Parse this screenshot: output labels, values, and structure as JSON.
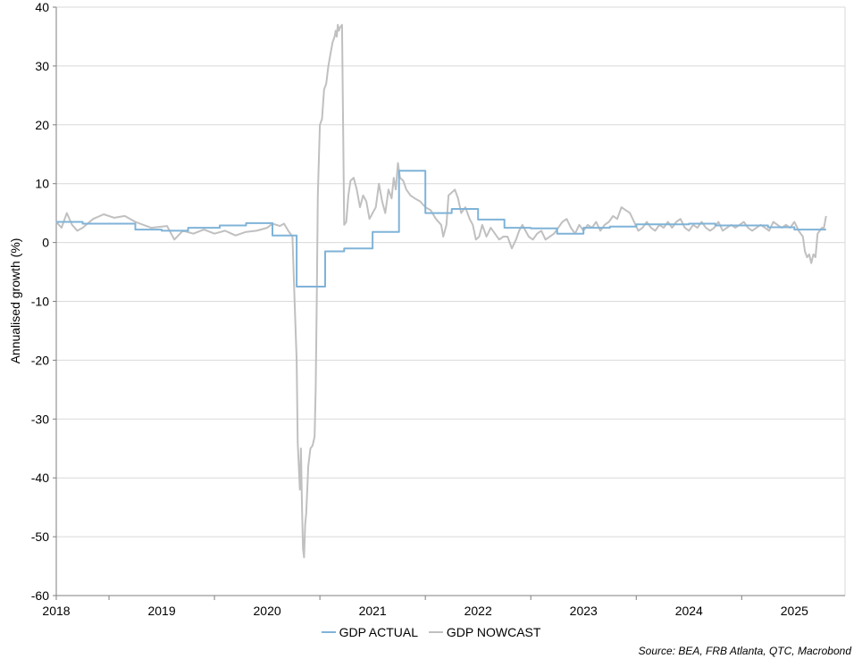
{
  "chart_data": {
    "type": "line",
    "title": "",
    "xlabel": "",
    "ylabel": "Annualised growth (%)",
    "ylim": [
      -60,
      40
    ],
    "yticks": [
      "-60",
      "-50",
      "-40",
      "-30",
      "-20",
      "-10",
      "0",
      "10",
      "20",
      "30",
      "40"
    ],
    "xlim": [
      2017.5,
      2024.98
    ],
    "xtick_labels": [
      "2018",
      "2019",
      "2020",
      "2021",
      "2022",
      "2023",
      "2024",
      "2025"
    ],
    "grid": "horizontal",
    "legend_position": "bottom",
    "colors": {
      "actual": "#7fb3d8",
      "nowcast": "#c0c0c0",
      "grid": "#d9d9d9",
      "axis": "#7f7f7f"
    },
    "series": [
      {
        "name": "GDP ACTUAL",
        "step": true,
        "points": [
          [
            2017.5,
            3.5
          ],
          [
            2017.75,
            3.2
          ],
          [
            2018.25,
            2.2
          ],
          [
            2018.5,
            2.0
          ],
          [
            2018.75,
            2.5
          ],
          [
            2019.05,
            2.9
          ],
          [
            2019.3,
            3.3
          ],
          [
            2019.55,
            1.2
          ],
          [
            2019.78,
            -7.5
          ],
          [
            2020.05,
            -1.5
          ],
          [
            2020.23,
            -1.0
          ],
          [
            2020.5,
            1.8
          ],
          [
            2020.75,
            12.2
          ],
          [
            2021.0,
            5.0
          ],
          [
            2021.25,
            5.7
          ],
          [
            2021.5,
            3.9
          ],
          [
            2021.75,
            2.5
          ],
          [
            2022.0,
            2.4
          ],
          [
            2022.25,
            1.5
          ],
          [
            2022.5,
            2.5
          ],
          [
            2022.75,
            2.7
          ],
          [
            2023.0,
            3.1
          ],
          [
            2023.5,
            3.2
          ],
          [
            2023.75,
            2.9
          ],
          [
            2024.25,
            2.6
          ],
          [
            2024.5,
            2.2
          ],
          [
            2024.8,
            2.2
          ]
        ]
      },
      {
        "name": "GDP NOWCAST",
        "step": false,
        "points": [
          [
            2017.5,
            3.5
          ],
          [
            2017.55,
            2.5
          ],
          [
            2017.6,
            5.0
          ],
          [
            2017.65,
            3.0
          ],
          [
            2017.7,
            2.0
          ],
          [
            2017.75,
            2.5
          ],
          [
            2017.85,
            4.0
          ],
          [
            2017.95,
            4.8
          ],
          [
            2018.05,
            4.2
          ],
          [
            2018.15,
            4.5
          ],
          [
            2018.25,
            3.5
          ],
          [
            2018.4,
            2.5
          ],
          [
            2018.55,
            2.8
          ],
          [
            2018.62,
            0.5
          ],
          [
            2018.7,
            2.0
          ],
          [
            2018.8,
            1.5
          ],
          [
            2018.9,
            2.2
          ],
          [
            2019.0,
            1.5
          ],
          [
            2019.1,
            2.0
          ],
          [
            2019.2,
            1.2
          ],
          [
            2019.3,
            1.8
          ],
          [
            2019.4,
            2.0
          ],
          [
            2019.5,
            2.5
          ],
          [
            2019.55,
            3.2
          ],
          [
            2019.62,
            2.8
          ],
          [
            2019.66,
            3.2
          ],
          [
            2019.7,
            2.0
          ],
          [
            2019.74,
            1.0
          ],
          [
            2019.76,
            -10.0
          ],
          [
            2019.78,
            -20.0
          ],
          [
            2019.79,
            -34.0
          ],
          [
            2019.8,
            -38.0
          ],
          [
            2019.81,
            -42.0
          ],
          [
            2019.82,
            -35.0
          ],
          [
            2019.83,
            -45.0
          ],
          [
            2019.84,
            -52.0
          ],
          [
            2019.85,
            -53.5
          ],
          [
            2019.86,
            -48.0
          ],
          [
            2019.87,
            -46.0
          ],
          [
            2019.88,
            -42.0
          ],
          [
            2019.89,
            -38.0
          ],
          [
            2019.91,
            -35.0
          ],
          [
            2019.93,
            -34.5
          ],
          [
            2019.95,
            -33.0
          ],
          [
            2019.96,
            -25.0
          ],
          [
            2019.97,
            -10.0
          ],
          [
            2019.98,
            8.0
          ],
          [
            2020.0,
            20.0
          ],
          [
            2020.02,
            21.0
          ],
          [
            2020.04,
            26.0
          ],
          [
            2020.06,
            27.0
          ],
          [
            2020.08,
            30.0
          ],
          [
            2020.1,
            32.0
          ],
          [
            2020.12,
            34.0
          ],
          [
            2020.14,
            35.0
          ],
          [
            2020.15,
            36.0
          ],
          [
            2020.16,
            35.0
          ],
          [
            2020.17,
            37.0
          ],
          [
            2020.18,
            36.0
          ],
          [
            2020.19,
            36.5
          ],
          [
            2020.21,
            37.0
          ],
          [
            2020.22,
            20.0
          ],
          [
            2020.23,
            3.0
          ],
          [
            2020.25,
            3.5
          ],
          [
            2020.27,
            8.0
          ],
          [
            2020.29,
            10.5
          ],
          [
            2020.32,
            11.0
          ],
          [
            2020.35,
            9.0
          ],
          [
            2020.38,
            6.0
          ],
          [
            2020.41,
            8.0
          ],
          [
            2020.44,
            7.0
          ],
          [
            2020.47,
            4.0
          ],
          [
            2020.5,
            5.0
          ],
          [
            2020.53,
            6.0
          ],
          [
            2020.56,
            10.0
          ],
          [
            2020.59,
            7.0
          ],
          [
            2020.62,
            5.0
          ],
          [
            2020.65,
            9.0
          ],
          [
            2020.68,
            7.5
          ],
          [
            2020.7,
            11.0
          ],
          [
            2020.72,
            9.0
          ],
          [
            2020.74,
            13.5
          ],
          [
            2020.76,
            11.0
          ],
          [
            2020.79,
            10.5
          ],
          [
            2020.82,
            9.0
          ],
          [
            2020.86,
            8.0
          ],
          [
            2020.9,
            7.5
          ],
          [
            2020.95,
            7.0
          ],
          [
            2021.0,
            6.0
          ],
          [
            2021.05,
            5.5
          ],
          [
            2021.1,
            4.0
          ],
          [
            2021.15,
            3.0
          ],
          [
            2021.17,
            1.0
          ],
          [
            2021.2,
            3.0
          ],
          [
            2021.22,
            8.0
          ],
          [
            2021.25,
            8.5
          ],
          [
            2021.28,
            9.0
          ],
          [
            2021.31,
            7.5
          ],
          [
            2021.34,
            5.0
          ],
          [
            2021.38,
            6.0
          ],
          [
            2021.42,
            4.0
          ],
          [
            2021.45,
            3.0
          ],
          [
            2021.48,
            0.5
          ],
          [
            2021.51,
            1.0
          ],
          [
            2021.54,
            3.0
          ],
          [
            2021.58,
            1.0
          ],
          [
            2021.62,
            2.5
          ],
          [
            2021.66,
            1.5
          ],
          [
            2021.7,
            0.5
          ],
          [
            2021.74,
            1.0
          ],
          [
            2021.78,
            1.0
          ],
          [
            2021.82,
            -1.0
          ],
          [
            2021.86,
            0.5
          ],
          [
            2021.89,
            2.0
          ],
          [
            2021.92,
            3.0
          ],
          [
            2021.95,
            2.0
          ],
          [
            2021.98,
            1.0
          ],
          [
            2022.02,
            0.5
          ],
          [
            2022.06,
            1.5
          ],
          [
            2022.1,
            2.0
          ],
          [
            2022.14,
            0.5
          ],
          [
            2022.18,
            1.0
          ],
          [
            2022.22,
            1.5
          ],
          [
            2022.26,
            2.5
          ],
          [
            2022.3,
            3.5
          ],
          [
            2022.34,
            4.0
          ],
          [
            2022.38,
            2.5
          ],
          [
            2022.42,
            1.5
          ],
          [
            2022.46,
            3.0
          ],
          [
            2022.5,
            2.0
          ],
          [
            2022.54,
            3.0
          ],
          [
            2022.58,
            2.5
          ],
          [
            2022.62,
            3.5
          ],
          [
            2022.66,
            2.0
          ],
          [
            2022.7,
            3.0
          ],
          [
            2022.74,
            3.5
          ],
          [
            2022.78,
            4.5
          ],
          [
            2022.82,
            4.0
          ],
          [
            2022.86,
            6.0
          ],
          [
            2022.9,
            5.5
          ],
          [
            2022.94,
            5.0
          ],
          [
            2022.98,
            3.5
          ],
          [
            2023.02,
            2.0
          ],
          [
            2023.06,
            2.5
          ],
          [
            2023.1,
            3.5
          ],
          [
            2023.14,
            2.5
          ],
          [
            2023.18,
            2.0
          ],
          [
            2023.22,
            3.0
          ],
          [
            2023.26,
            2.5
          ],
          [
            2023.3,
            3.5
          ],
          [
            2023.34,
            2.5
          ],
          [
            2023.38,
            3.5
          ],
          [
            2023.42,
            4.0
          ],
          [
            2023.46,
            2.5
          ],
          [
            2023.5,
            2.0
          ],
          [
            2023.54,
            3.0
          ],
          [
            2023.58,
            2.5
          ],
          [
            2023.62,
            3.5
          ],
          [
            2023.66,
            2.5
          ],
          [
            2023.7,
            2.0
          ],
          [
            2023.74,
            2.5
          ],
          [
            2023.78,
            3.5
          ],
          [
            2023.82,
            2.0
          ],
          [
            2023.86,
            2.5
          ],
          [
            2023.9,
            3.0
          ],
          [
            2023.94,
            2.5
          ],
          [
            2023.98,
            3.0
          ],
          [
            2024.02,
            3.5
          ],
          [
            2024.06,
            2.5
          ],
          [
            2024.1,
            2.0
          ],
          [
            2024.14,
            2.5
          ],
          [
            2024.18,
            3.0
          ],
          [
            2024.22,
            2.5
          ],
          [
            2024.26,
            2.0
          ],
          [
            2024.3,
            3.5
          ],
          [
            2024.34,
            3.0
          ],
          [
            2024.38,
            2.5
          ],
          [
            2024.42,
            3.0
          ],
          [
            2024.46,
            2.5
          ],
          [
            2024.5,
            3.5
          ],
          [
            2024.54,
            2.0
          ],
          [
            2024.58,
            1.0
          ],
          [
            2024.6,
            -1.5
          ],
          [
            2024.62,
            -2.5
          ],
          [
            2024.64,
            -2.0
          ],
          [
            2024.66,
            -3.5
          ],
          [
            2024.68,
            -2.0
          ],
          [
            2024.7,
            -2.5
          ],
          [
            2024.72,
            1.5
          ],
          [
            2024.74,
            2.0
          ],
          [
            2024.76,
            2.5
          ],
          [
            2024.78,
            2.5
          ],
          [
            2024.8,
            4.5
          ]
        ]
      }
    ]
  },
  "source_text": "Source: BEA, FRB Atlanta, QTC, Macrobond"
}
